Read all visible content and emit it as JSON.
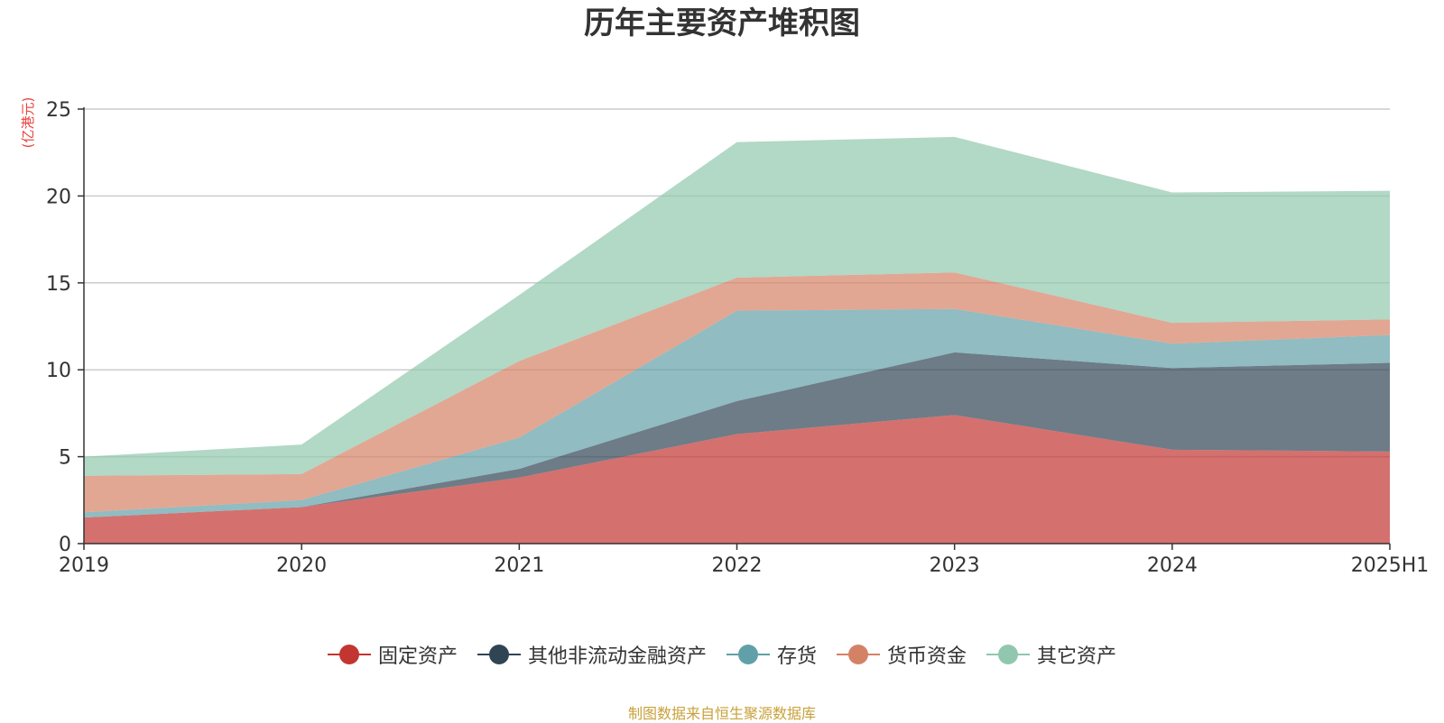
{
  "chart_data": {
    "type": "area",
    "stacked": true,
    "title": "历年主要资产堆积图",
    "ylabel": "(亿港元)",
    "xlabel": "",
    "categories": [
      "2019",
      "2020",
      "2021",
      "2022",
      "2023",
      "2024",
      "2025H1"
    ],
    "ylim": [
      0,
      25
    ],
    "yticks": [
      0,
      5,
      10,
      15,
      20,
      25
    ],
    "grid": true,
    "legend_position": "bottom",
    "series": [
      {
        "name": "固定资产",
        "color": "#c23531",
        "values": [
          1.5,
          2.1,
          3.8,
          6.3,
          7.4,
          5.4,
          5.3
        ]
      },
      {
        "name": "其他非流动金融资产",
        "color": "#2f4554",
        "values": [
          0.0,
          0.0,
          0.5,
          1.9,
          3.6,
          4.7,
          5.1
        ]
      },
      {
        "name": "存货",
        "color": "#61a0a8",
        "values": [
          0.3,
          0.4,
          1.8,
          5.2,
          2.5,
          1.4,
          1.6
        ]
      },
      {
        "name": "货币资金",
        "color": "#d48265",
        "values": [
          2.1,
          1.5,
          4.4,
          1.9,
          2.1,
          1.2,
          0.9
        ]
      },
      {
        "name": "其它资产",
        "color": "#91c7ae",
        "values": [
          1.1,
          1.7,
          3.8,
          7.8,
          7.8,
          7.5,
          7.4
        ]
      }
    ]
  },
  "source_note": "制图数据来自恒生聚源数据库",
  "colors": {
    "unit_label": "#e8413e",
    "source_note": "#c8a13a",
    "axis": "#333333",
    "grid": "#cccccc"
  }
}
